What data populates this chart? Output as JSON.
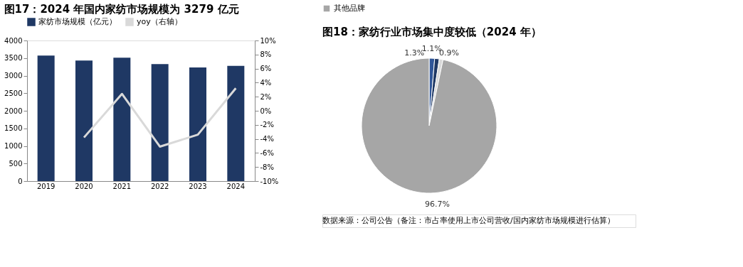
{
  "chart_data": [
    {
      "type": "bar",
      "title": "图17：2024 年国内家纺市场规模为 3279 亿元",
      "categories": [
        "2019",
        "2020",
        "2021",
        "2022",
        "2023",
        "2024"
      ],
      "series": [
        {
          "name": "家纺市场规模（亿元）",
          "color": "#1f3864",
          "values": [
            3570,
            3430,
            3510,
            3330,
            3230,
            3279
          ]
        },
        {
          "name": "yoy（右轴）",
          "type": "line",
          "axis": "y2",
          "color": "#d9d9d9",
          "values": [
            null,
            -3.8,
            2.4,
            -5.1,
            -3.4,
            3.2
          ]
        }
      ],
      "ylim": [
        0,
        4000
      ],
      "yticks": [
        0,
        500,
        1000,
        1500,
        2000,
        2500,
        3000,
        3500,
        4000
      ],
      "y2lim": [
        -10,
        10
      ],
      "y2ticks": [
        {
          "value": -10,
          "label": "-10%"
        },
        {
          "value": -8,
          "label": "-8%"
        },
        {
          "value": -6,
          "label": "-6%"
        },
        {
          "value": -4,
          "label": "-4%"
        },
        {
          "value": -2,
          "label": "-2%"
        },
        {
          "value": 0,
          "label": "0%"
        },
        {
          "value": 2,
          "label": "2%"
        },
        {
          "value": 4,
          "label": "4%"
        },
        {
          "value": 6,
          "label": "6%"
        },
        {
          "value": 8,
          "label": "8%"
        },
        {
          "value": 10,
          "label": "10%"
        }
      ],
      "legend": "top",
      "grid": false
    },
    {
      "type": "pie",
      "title": "图18：家纺行业市场集中度较低（2024 年）",
      "categories": [
        null,
        null,
        null,
        "其他品牌"
      ],
      "values": [
        1.3,
        1.1,
        0.9,
        96.7
      ],
      "colors": [
        "#2f5597",
        "#1f3864",
        "#d9d9d9",
        "#a6a6a6"
      ],
      "value_labels": [
        "1.3%",
        "1.1%",
        "0.9%",
        "96.7%"
      ],
      "legend": "top",
      "annotations": [
        "数据来源：公司公告（备注：市占率使用上市公司营收/国内家纺市场规模进行估算）"
      ]
    }
  ]
}
